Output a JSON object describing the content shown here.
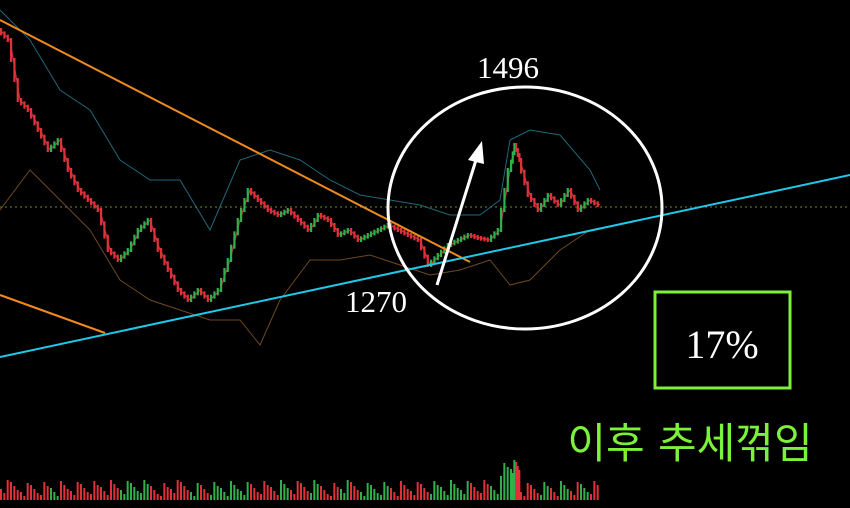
{
  "annotations": {
    "high": "1496",
    "low": "1270",
    "percent": "17%",
    "caption": "이후 추세꺾임"
  }
}
